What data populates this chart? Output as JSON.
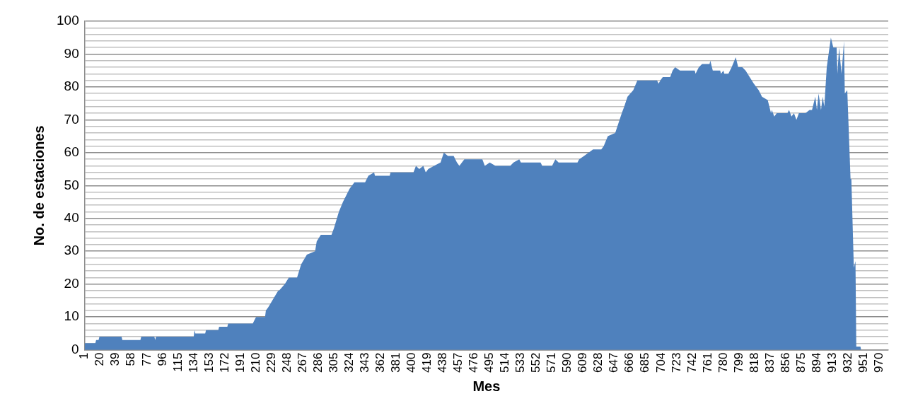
{
  "chart_data": {
    "type": "area",
    "xlabel": "Mes",
    "ylabel": "No. de estaciones",
    "x": [
      1,
      14,
      15,
      18,
      19,
      46,
      47,
      69,
      70,
      86,
      87,
      88,
      134,
      135,
      136,
      148,
      149,
      164,
      165,
      175,
      176,
      206,
      208,
      210,
      221,
      222,
      225,
      237,
      238,
      245,
      250,
      260,
      265,
      272,
      282,
      284,
      289,
      302,
      305,
      311,
      316,
      324,
      330,
      343,
      347,
      354,
      355,
      373,
      374,
      402,
      405,
      409,
      414,
      417,
      420,
      427,
      435,
      439,
      444,
      451,
      455,
      458,
      464,
      486,
      489,
      495,
      502,
      520,
      524,
      531,
      533,
      547,
      550,
      557,
      559,
      571,
      575,
      579,
      602,
      604,
      610,
      621,
      631,
      634,
      639,
      648,
      652,
      656,
      659,
      663,
      670,
      675,
      699,
      701,
      703,
      706,
      715,
      718,
      721,
      727,
      745,
      746,
      750,
      754,
      763,
      764,
      767,
      776,
      777,
      780,
      781,
      786,
      790,
      795,
      798,
      803,
      807,
      812,
      817,
      823,
      827,
      834,
      838,
      839,
      842,
      845,
      858,
      860,
      863,
      866,
      869,
      872,
      880,
      885,
      888,
      892,
      894,
      896,
      899,
      901,
      903,
      906,
      911,
      914,
      918,
      919,
      921,
      924,
      927,
      928,
      931,
      935,
      936,
      939,
      941,
      942,
      943,
      947,
      948
    ],
    "values": [
      2,
      2,
      3,
      3,
      4,
      4,
      3,
      3,
      4,
      4,
      3,
      4,
      4,
      6,
      5,
      5,
      6,
      6,
      7,
      7,
      8,
      8,
      9,
      10,
      10,
      12,
      13,
      18,
      18,
      20,
      22,
      22,
      26,
      29,
      30,
      33,
      35,
      35,
      37,
      42,
      45,
      49,
      51,
      51,
      53,
      54,
      53,
      53,
      54,
      54,
      56,
      55,
      56,
      54,
      55,
      56,
      57,
      60,
      59,
      59,
      57,
      56,
      58,
      58,
      56,
      57,
      56,
      56,
      57,
      58,
      57,
      57,
      57,
      57,
      56,
      56,
      58,
      57,
      57,
      58,
      59,
      61,
      61,
      62,
      65,
      66,
      69,
      72,
      74,
      77,
      79,
      82,
      82,
      81,
      82,
      83,
      83,
      85,
      86,
      85,
      85,
      84,
      86,
      87,
      87,
      88,
      85,
      85,
      84,
      85,
      84,
      84,
      86,
      89,
      86,
      86,
      85,
      83,
      81,
      79,
      77,
      76,
      72,
      73,
      71,
      72,
      72,
      73,
      71,
      72,
      70,
      72,
      72,
      73,
      73,
      77,
      73,
      78,
      73,
      77,
      74,
      86,
      95,
      92,
      92,
      84,
      92,
      84,
      94,
      78,
      79,
      52,
      52,
      25,
      27,
      1,
      1,
      1,
      0
    ],
    "color": "#4f81bd",
    "xlim": [
      1,
      981
    ],
    "xticks": [
      1,
      20,
      39,
      58,
      77,
      96,
      115,
      134,
      153,
      172,
      191,
      210,
      229,
      248,
      267,
      286,
      305,
      324,
      343,
      362,
      381,
      400,
      419,
      438,
      457,
      476,
      495,
      514,
      533,
      552,
      571,
      590,
      609,
      628,
      647,
      666,
      685,
      704,
      723,
      742,
      761,
      780,
      799,
      818,
      837,
      856,
      875,
      894,
      913,
      932,
      951,
      970
    ],
    "ylim": [
      0,
      100
    ],
    "yticks": [
      0,
      {
        "value": 2,
        "label": null
      },
      {
        "value": 4,
        "label": null
      },
      {
        "value": 6,
        "label": null
      },
      {
        "value": 8,
        "label": null
      },
      10,
      {
        "value": 12,
        "label": null
      },
      {
        "value": 14,
        "label": null
      },
      {
        "value": 16,
        "label": null
      },
      {
        "value": 18,
        "label": null
      },
      20,
      {
        "value": 22,
        "label": null
      },
      {
        "value": 24,
        "label": null
      },
      {
        "value": 26,
        "label": null
      },
      {
        "value": 28,
        "label": null
      },
      30,
      {
        "value": 32,
        "label": null
      },
      {
        "value": 34,
        "label": null
      },
      {
        "value": 36,
        "label": null
      },
      {
        "value": 38,
        "label": null
      },
      40,
      {
        "value": 42,
        "label": null
      },
      {
        "value": 44,
        "label": null
      },
      {
        "value": 46,
        "label": null
      },
      {
        "value": 48,
        "label": null
      },
      50,
      {
        "value": 52,
        "label": null
      },
      {
        "value": 54,
        "label": null
      },
      {
        "value": 56,
        "label": null
      },
      {
        "value": 58,
        "label": null
      },
      60,
      {
        "value": 62,
        "label": null
      },
      {
        "value": 64,
        "label": null
      },
      {
        "value": 66,
        "label": null
      },
      {
        "value": 68,
        "label": null
      },
      70,
      {
        "value": 72,
        "label": null
      },
      {
        "value": 74,
        "label": null
      },
      {
        "value": 76,
        "label": null
      },
      {
        "value": 78,
        "label": null
      },
      80,
      {
        "value": 82,
        "label": null
      },
      {
        "value": 84,
        "label": null
      },
      {
        "value": 86,
        "label": null
      },
      {
        "value": 88,
        "label": null
      },
      90,
      {
        "value": 92,
        "label": null
      },
      {
        "value": 94,
        "label": null
      },
      {
        "value": 96,
        "label": null
      },
      {
        "value": 98,
        "label": null
      },
      100
    ],
    "grid": "y"
  }
}
